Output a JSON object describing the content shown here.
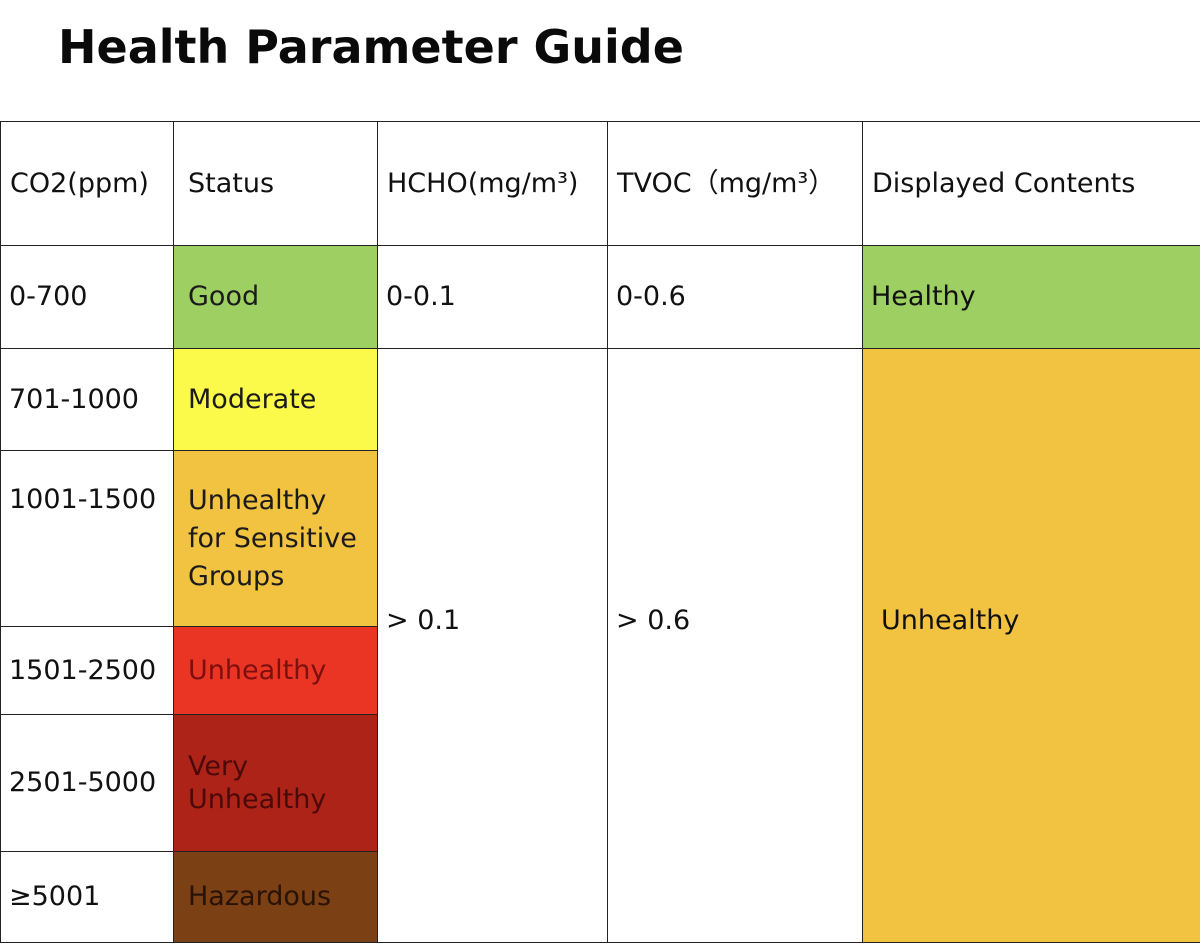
{
  "title": "Health Parameter Guide",
  "table": {
    "headers": [
      "CO2(ppm)",
      "Status",
      "HCHO(mg/m³)",
      "TVOC（mg/m³）",
      "Displayed Contents"
    ],
    "rows": [
      {
        "co2": "0-700",
        "status": "Good",
        "status_color": "#9dcf62",
        "status_text_color": "#1b1b1b"
      },
      {
        "co2": "701-1000",
        "status": "Moderate",
        "status_color": "#fbf94a",
        "status_text_color": "#1b1b1b"
      },
      {
        "co2": "1001-1500",
        "status": "Unhealthy for Sensitive Groups",
        "status_color": "#f2c241",
        "status_text_color": "#1b1b1b"
      },
      {
        "co2": "1501-2500",
        "status": "Unhealthy",
        "status_color": "#ea3424",
        "status_text_color": "#7d0f0f"
      },
      {
        "co2": "2501-5000",
        "status": "Very Unhealthy",
        "status_color": "#ad2317",
        "status_text_color": "#4a0a0a"
      },
      {
        "co2": "≥5001",
        "status": "Hazardous",
        "status_color": "#7b4115",
        "status_text_color": "#2a1205"
      }
    ],
    "good_row": {
      "hcho": "0-0.1",
      "tvoc": "0-0.6",
      "displayed": "Healthy",
      "displayed_color": "#9dcf62"
    },
    "merged": {
      "hcho": "> 0.1",
      "tvoc": "> 0.6",
      "displayed": "Unhealthy",
      "displayed_color": "#f2c241"
    }
  }
}
